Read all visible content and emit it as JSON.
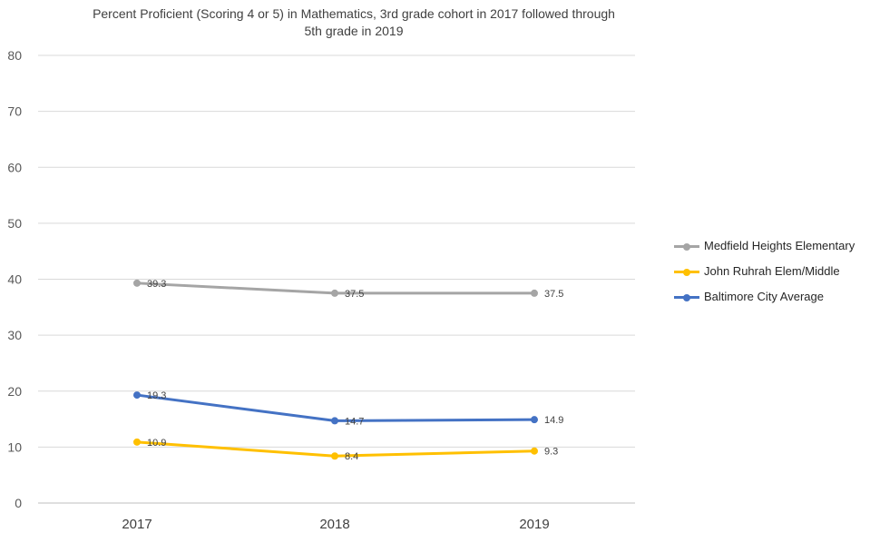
{
  "chart_data": {
    "type": "line",
    "title_lines": [
      "Percent Proficient (Scoring 4 or 5) in Mathematics, 3rd grade cohort in 2017 followed through",
      "5th grade in 2019"
    ],
    "x": [
      "2017",
      "2018",
      "2019"
    ],
    "ylim": [
      0,
      80
    ],
    "yticks": [
      "0",
      "10",
      "20",
      "30",
      "40",
      "50",
      "60",
      "70",
      "80"
    ],
    "grid": true,
    "legend_position": "right",
    "series": [
      {
        "name": "Medfield Heights Elementary",
        "values": [
          39.3,
          37.5,
          37.5
        ],
        "labels": [
          "39.3",
          "37.5",
          "37.5"
        ],
        "color": "#a5a5a5"
      },
      {
        "name": "John Ruhrah Elem/Middle",
        "values": [
          10.9,
          8.4,
          9.3
        ],
        "labels": [
          "10.9",
          "8.4",
          "9.3"
        ],
        "color": "#ffc000"
      },
      {
        "name": "Baltimore City Average",
        "values": [
          19.3,
          14.7,
          14.9
        ],
        "labels": [
          "19.3",
          "14.7",
          "14.9"
        ],
        "color": "#4472c4"
      }
    ]
  }
}
